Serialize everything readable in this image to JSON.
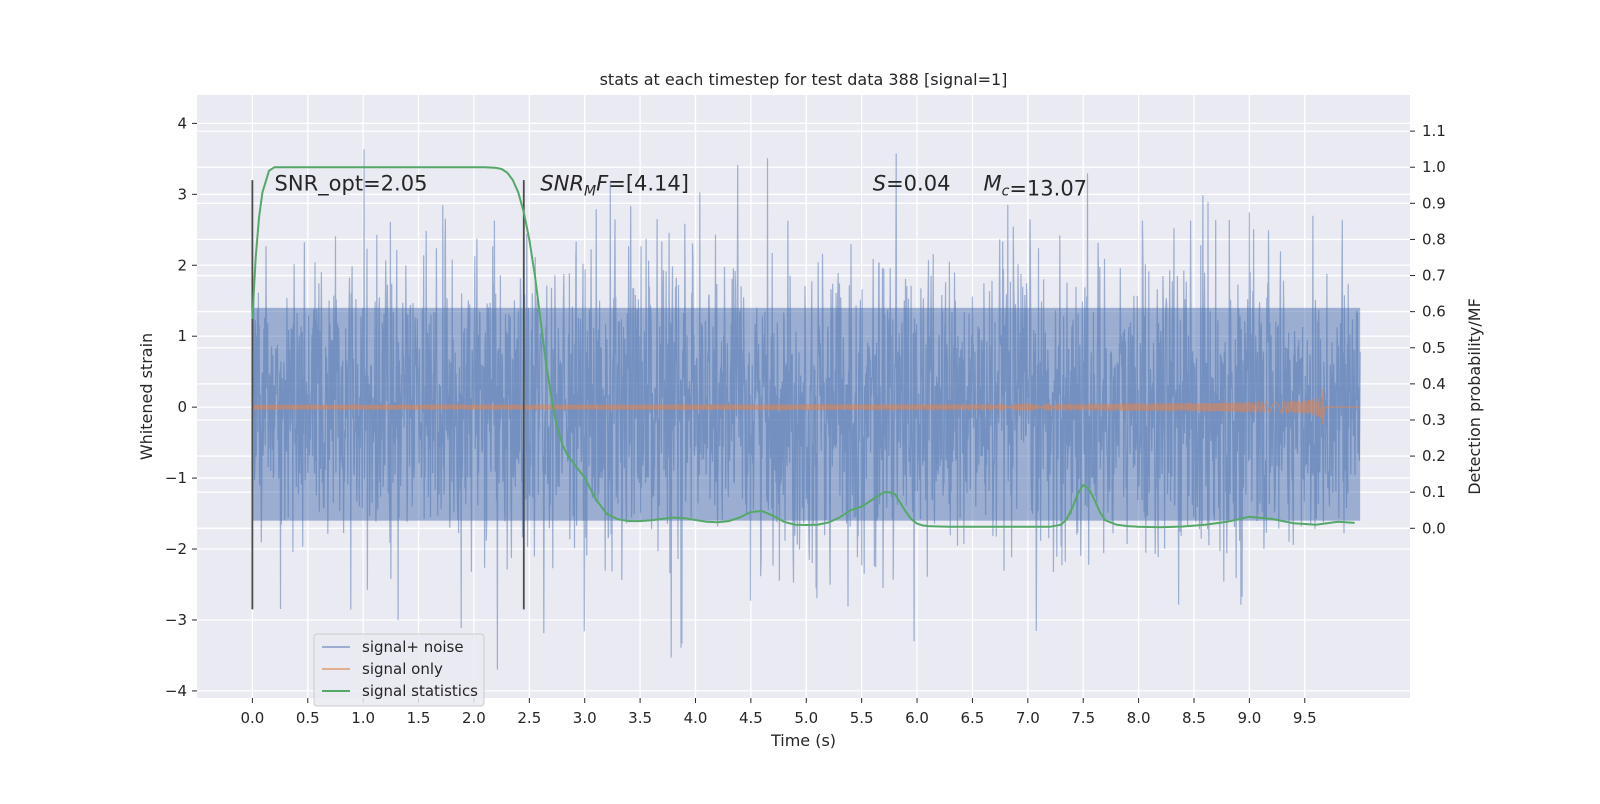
{
  "chart_data": {
    "type": "line",
    "title": "stats at each timestep for test data 388 [signal=1]",
    "xlabel": "Time (s)",
    "ylabel": "Whitened strain",
    "ylabel_right": "Detection probability/MF",
    "xlim": [
      -0.5,
      10.45
    ],
    "ylim": [
      -4.1,
      4.4
    ],
    "ylim_right": [
      -0.47,
      1.2
    ],
    "x_ticks": [
      0.0,
      0.5,
      1.0,
      1.5,
      2.0,
      2.5,
      3.0,
      3.5,
      4.0,
      4.5,
      5.0,
      5.5,
      6.0,
      6.5,
      7.0,
      7.5,
      8.0,
      8.5,
      9.0,
      9.5
    ],
    "x_tick_labels": [
      "0.0",
      "0.5",
      "1.0",
      "1.5",
      "2.0",
      "2.5",
      "3.0",
      "3.5",
      "4.0",
      "4.5",
      "5.0",
      "5.5",
      "6.0",
      "6.5",
      "7.0",
      "7.5",
      "8.0",
      "8.5",
      "9.0",
      "9.5"
    ],
    "y_ticks": [
      4,
      3,
      2,
      1,
      0,
      -1,
      -2,
      -3,
      -4
    ],
    "y_tick_labels": [
      "4",
      "3",
      "2",
      "1",
      "0",
      "−1",
      "−2",
      "−3",
      "−4"
    ],
    "y_right_ticks": [
      1.1,
      1.0,
      0.9,
      0.8,
      0.7,
      0.6,
      0.5,
      0.4,
      0.3,
      0.2,
      0.1,
      0.0
    ],
    "y_right_tick_labels": [
      "1.1",
      "1.0",
      "0.9",
      "0.8",
      "0.7",
      "0.6",
      "0.5",
      "0.4",
      "0.3",
      "0.2",
      "0.1",
      "0.0"
    ],
    "grid": true,
    "legend_position": "lower-left",
    "series": [
      {
        "name": "signal+ noise",
        "color": "#4c72b0",
        "alpha": 0.5,
        "x_range": [
          0.0,
          10.0
        ],
        "band": [
          -1.6,
          1.4
        ],
        "peaks_max": 4.05,
        "peaks_min": -3.7
      },
      {
        "name": "signal only",
        "color": "#dd8452",
        "alpha": 0.6,
        "x_range": [
          0.0,
          9.66
        ],
        "peak_amplitude": 0.35,
        "merger_time": 9.66
      },
      {
        "name": "signal statistics",
        "color": "#55a868",
        "axis": "right",
        "x": [
          0.0,
          0.03,
          0.06,
          0.09,
          0.12,
          0.15,
          0.2,
          0.3,
          0.5,
          1.0,
          1.5,
          2.0,
          2.1,
          2.2,
          2.25,
          2.3,
          2.35,
          2.4,
          2.45,
          2.5,
          2.55,
          2.6,
          2.65,
          2.7,
          2.75,
          2.8,
          2.85,
          2.9,
          3.0,
          3.1,
          3.2,
          3.3,
          3.4,
          3.5,
          3.6,
          3.7,
          3.8,
          3.9,
          4.0,
          4.1,
          4.2,
          4.3,
          4.4,
          4.5,
          4.6,
          4.7,
          4.8,
          4.9,
          5.0,
          5.1,
          5.2,
          5.3,
          5.4,
          5.5,
          5.6,
          5.7,
          5.75,
          5.8,
          5.85,
          5.9,
          5.95,
          6.0,
          6.05,
          6.1,
          6.2,
          6.3,
          6.5,
          7.0,
          7.2,
          7.3,
          7.35,
          7.4,
          7.45,
          7.5,
          7.55,
          7.6,
          7.65,
          7.7,
          7.8,
          7.9,
          8.0,
          8.2,
          8.4,
          8.6,
          8.8,
          8.9,
          9.0,
          9.2,
          9.4,
          9.6,
          9.8,
          9.95
        ],
        "y": [
          0.58,
          0.75,
          0.86,
          0.93,
          0.96,
          0.99,
          1.0,
          1.0,
          1.0,
          1.0,
          1.0,
          1.0,
          1.0,
          0.998,
          0.995,
          0.985,
          0.965,
          0.93,
          0.875,
          0.8,
          0.7,
          0.58,
          0.46,
          0.36,
          0.28,
          0.23,
          0.2,
          0.18,
          0.14,
          0.08,
          0.04,
          0.025,
          0.02,
          0.02,
          0.022,
          0.026,
          0.03,
          0.028,
          0.023,
          0.018,
          0.017,
          0.02,
          0.03,
          0.045,
          0.048,
          0.035,
          0.018,
          0.01,
          0.009,
          0.01,
          0.016,
          0.03,
          0.05,
          0.06,
          0.08,
          0.1,
          0.1,
          0.095,
          0.07,
          0.045,
          0.025,
          0.013,
          0.008,
          0.006,
          0.005,
          0.004,
          0.004,
          0.004,
          0.004,
          0.01,
          0.025,
          0.055,
          0.095,
          0.12,
          0.11,
          0.08,
          0.045,
          0.022,
          0.01,
          0.006,
          0.004,
          0.003,
          0.005,
          0.01,
          0.018,
          0.025,
          0.032,
          0.026,
          0.014,
          0.01,
          0.018,
          0.015
        ]
      }
    ],
    "vlines": [
      0.0,
      2.45
    ],
    "vline_range": [
      -2.85,
      3.2
    ],
    "annotations": [
      {
        "text": "SNR_opt=2.05",
        "x": 0.2,
        "y": 3.15
      },
      {
        "text": "SNR_MF=[4.14]",
        "x": 2.6,
        "y": 3.15
      },
      {
        "text": "S=0.04",
        "x": 5.6,
        "y": 3.15
      },
      {
        "text": "M_c=13.07",
        "x": 6.6,
        "y": 3.15
      }
    ]
  }
}
